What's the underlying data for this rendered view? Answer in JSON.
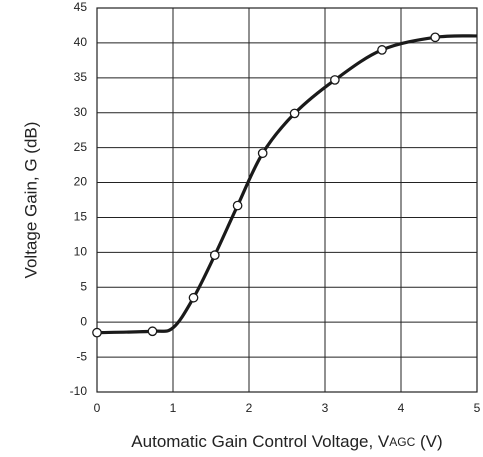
{
  "chart_data": {
    "type": "line",
    "xlabel": [
      "Automatic Gain Control Voltage, V",
      "AGC",
      " (V)"
    ],
    "ylabel": "Voltage Gain, G (dB)",
    "xlim": [
      0,
      5
    ],
    "xticks": [
      0,
      1,
      2,
      3,
      4,
      5
    ],
    "ylim": [
      -10,
      45
    ],
    "yticks": [
      -10,
      -5,
      0,
      5,
      10,
      15,
      20,
      25,
      30,
      35,
      40,
      45
    ],
    "grid": true,
    "series": [
      {
        "color": "#1a1a1a",
        "markers": false,
        "x": [
          0,
          0.73,
          1.0,
          1.27,
          1.55,
          1.85,
          2.18,
          2.6,
          3.13,
          3.75,
          4.45,
          5
        ],
        "values": [
          -1.5,
          -1.3,
          -0.8,
          3.5,
          9.6,
          16.7,
          24.2,
          29.9,
          34.7,
          39,
          40.8,
          41
        ]
      },
      {
        "color": "#1a1a1a",
        "markers": true,
        "line": false,
        "x": [
          0,
          0.73,
          1.27,
          1.55,
          1.85,
          2.18,
          2.6,
          3.13,
          3.75,
          4.45
        ],
        "values": [
          -1.5,
          -1.3,
          3.5,
          9.6,
          16.7,
          24.2,
          29.9,
          34.7,
          39,
          40.8
        ]
      }
    ]
  }
}
